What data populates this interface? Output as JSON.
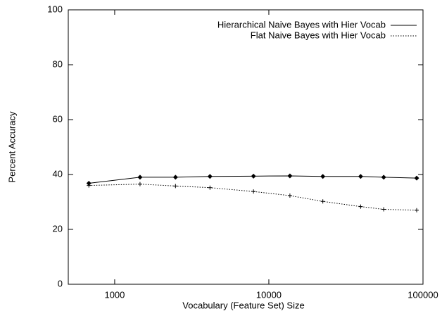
{
  "chart_data": {
    "type": "line",
    "xlabel": "Vocabulary (Feature Set) Size",
    "ylabel": "Percent Accuracy",
    "x": [
      680,
      1460,
      2480,
      4150,
      7950,
      13700,
      22400,
      39400,
      55600,
      91000
    ],
    "series": [
      {
        "name": "Hierarchical Naive Bayes with Hier Vocab",
        "color": "#000000",
        "dash": "solid",
        "marker": "diamond",
        "values": [
          36.8,
          39,
          39,
          39.3,
          39.4,
          39.5,
          39.3,
          39.3,
          39,
          38.7
        ]
      },
      {
        "name": "Flat Naive Bayes with Hier Vocab",
        "color": "#000000",
        "dash": "dotted",
        "marker": "plus",
        "values": [
          36,
          36.5,
          35.8,
          35.2,
          33.8,
          32.3,
          30.2,
          28.3,
          27.3,
          27
        ]
      }
    ],
    "xscale": "log",
    "xlim": [
      500,
      100000
    ],
    "xticks": [
      1000,
      10000,
      100000
    ],
    "ylim": [
      0,
      100
    ],
    "yticks": [
      0,
      20,
      40,
      60,
      80,
      100
    ],
    "legend": "upper right"
  }
}
